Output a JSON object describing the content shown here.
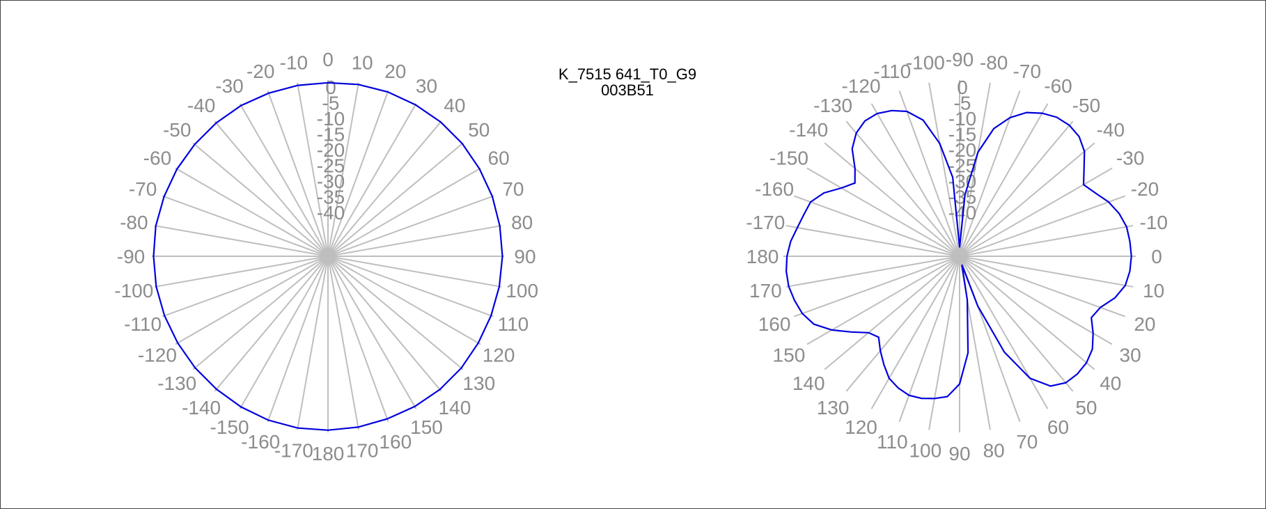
{
  "title": [
    "K_7515 641_T0_G9",
    "003B51"
  ],
  "colors": {
    "spokes": "#bebebe",
    "labels": "#8c8c8c",
    "trace": "#0000dd"
  },
  "chart_data": [
    {
      "type": "polar-line",
      "rlim": [
        -40,
        0
      ],
      "radial_ticks": [
        "0",
        "-5",
        "-10",
        "-15",
        "-20",
        "-25",
        "-30",
        "-35",
        "-40"
      ],
      "angle_ticks": [
        "0",
        "10",
        "20",
        "30",
        "40",
        "50",
        "60",
        "70",
        "80",
        "90",
        "100",
        "110",
        "120",
        "130",
        "140",
        "150",
        "160",
        "170",
        "180",
        "-170",
        "-160",
        "-150",
        "-140",
        "-130",
        "-120",
        "-110",
        "-100",
        "-90",
        "-80",
        "-70",
        "-60",
        "-50",
        "-40",
        "-30",
        "-20",
        "-10"
      ],
      "orientation": "0 at top, clockwise",
      "series": [
        {
          "angles_deg": [
            0,
            10,
            20,
            30,
            40,
            50,
            60,
            70,
            80,
            90,
            100,
            110,
            120,
            130,
            140,
            150,
            160,
            170,
            180,
            190,
            200,
            210,
            220,
            230,
            240,
            250,
            260,
            270,
            280,
            290,
            300,
            310,
            320,
            330,
            340,
            350
          ],
          "values": [
            -0.6,
            -0.4,
            -0.3,
            -0.3,
            -0.2,
            -0.2,
            -0.3,
            -0.3,
            -0.4,
            -0.4,
            -0.5,
            -0.6,
            -0.6,
            -0.5,
            -0.5,
            -0.6,
            -0.7,
            -0.6,
            -0.5,
            -0.4,
            -0.4,
            -0.5,
            -0.6,
            -0.6,
            -0.6,
            -0.5,
            -0.4,
            -0.4,
            -0.3,
            -0.4,
            -0.4,
            -0.5,
            -0.5,
            -0.5,
            -0.6,
            -0.6
          ]
        }
      ]
    },
    {
      "type": "polar-line",
      "rlim": [
        -40,
        0
      ],
      "radial_ticks": [
        "0",
        "-5",
        "-10",
        "-15",
        "-20",
        "-25",
        "-30",
        "-35",
        "-40"
      ],
      "angle_ticks": [
        "0",
        "10",
        "20",
        "30",
        "40",
        "50",
        "60",
        "70",
        "80",
        "90",
        "100",
        "110",
        "120",
        "130",
        "140",
        "150",
        "160",
        "170",
        "180",
        "-170",
        "-160",
        "-150",
        "-140",
        "-130",
        "-120",
        "-110",
        "-100",
        "-90",
        "-80",
        "-70",
        "-60",
        "-50",
        "-40",
        "-30",
        "-20",
        "-10"
      ],
      "orientation": "0 at right, counterclockwise toward bottom",
      "series": [
        {
          "angles_deg": [
            -90,
            -85,
            -80,
            -75,
            -70,
            -65,
            -60,
            -55,
            -50,
            -45,
            -40,
            -35,
            -30,
            -25,
            -20,
            -15,
            -10,
            -5,
            0,
            5,
            10,
            15,
            20,
            25,
            30,
            35,
            40,
            45,
            50,
            55,
            60,
            65,
            70,
            75,
            80,
            85,
            90,
            95,
            100,
            105,
            110,
            115,
            120,
            125,
            130,
            135,
            140,
            145,
            150,
            155,
            160,
            165,
            170,
            175,
            180,
            185,
            190,
            195,
            200,
            205,
            210,
            215,
            220,
            225,
            230,
            235,
            240,
            245,
            250,
            255,
            260,
            265
          ],
          "values": [
            -38,
            -26,
            -16,
            -10,
            -6.5,
            -4,
            -2.5,
            -1.5,
            -1.2,
            -1.6,
            -3,
            -5.5,
            -7.5,
            -6,
            -4,
            -2.5,
            -1.5,
            -1.2,
            -1,
            -1.2,
            -1.8,
            -3.5,
            -6,
            -7,
            -5,
            -3.2,
            -2.4,
            -2.2,
            -2.5,
            -4,
            -8,
            -16,
            -28,
            -38,
            -30,
            -18,
            -11,
            -8,
            -7.2,
            -6.6,
            -6.4,
            -7,
            -8,
            -10,
            -12,
            -14,
            -13,
            -10,
            -6.5,
            -3.5,
            -2,
            -1.2,
            -0.6,
            -0.5,
            -0.8,
            -1.5,
            -2.6,
            -3.4,
            -4,
            -6,
            -9,
            -11,
            -9,
            -5.5,
            -3.5,
            -2.5,
            -2.6,
            -3.5,
            -5,
            -8,
            -14,
            -22
          ]
        }
      ]
    }
  ]
}
